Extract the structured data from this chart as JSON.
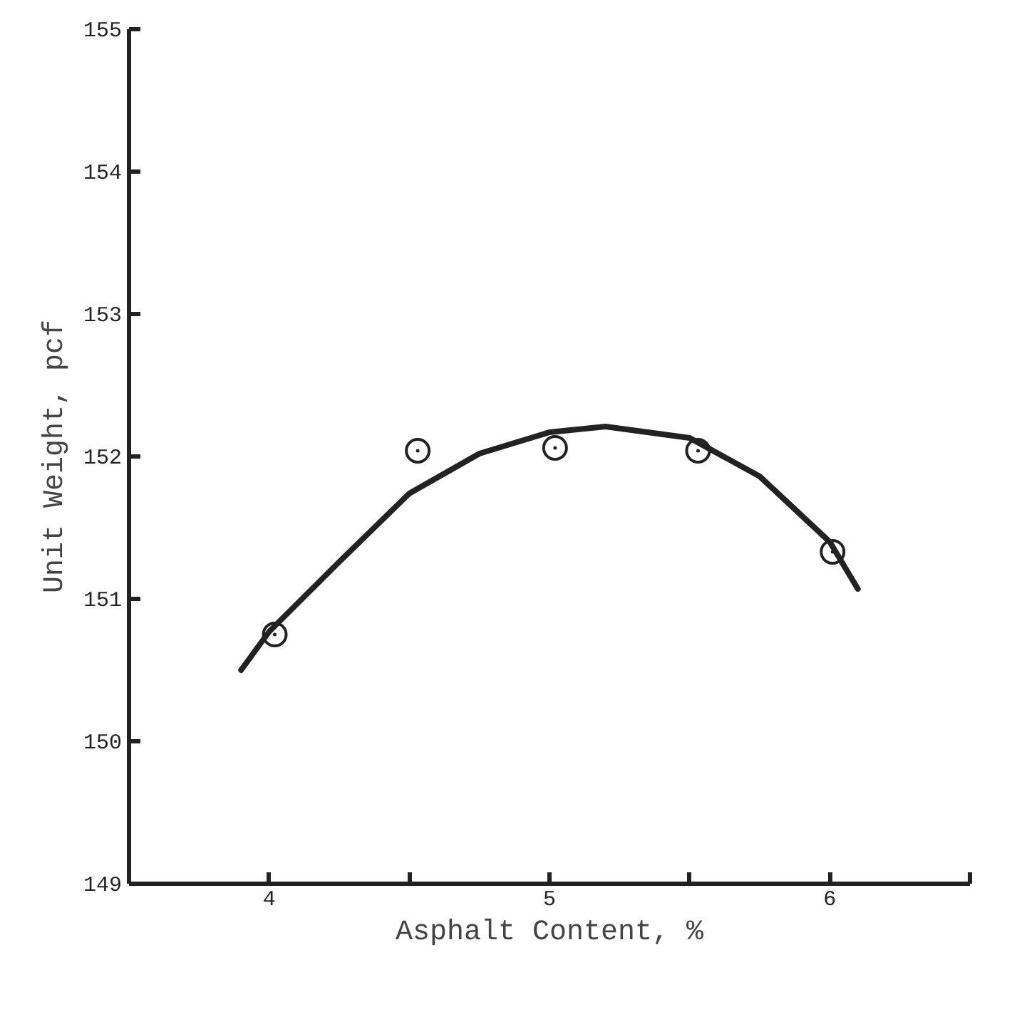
{
  "chart_data": {
    "type": "scatter",
    "xlabel": "Asphalt Content, %",
    "ylabel": "Unit Weight, pcf",
    "xlim": [
      3.5,
      6.5
    ],
    "ylim": [
      149,
      155
    ],
    "xticks": [
      4,
      {
        "value": 4.5,
        "label": null
      },
      5,
      {
        "value": 5.5,
        "label": null
      },
      6,
      {
        "value": 6.5,
        "label": null
      }
    ],
    "yticks": [
      149,
      150,
      151,
      152,
      153,
      154,
      155
    ],
    "series": [
      {
        "marker": "circle",
        "color": "#222222",
        "x": [
          4.02,
          4.53,
          5.02,
          5.53,
          6.01
        ],
        "values": [
          150.75,
          152.04,
          152.06,
          152.04,
          151.33
        ]
      },
      {
        "type": "line",
        "marker": "none",
        "line_style": "solid",
        "color": "#222222",
        "x": [
          3.9,
          4.0,
          4.25,
          4.5,
          4.75,
          5.0,
          5.2,
          5.5,
          5.75,
          6.0,
          6.1
        ],
        "values": [
          150.5,
          150.77,
          151.26,
          151.74,
          152.02,
          152.17,
          152.21,
          152.13,
          151.86,
          151.4,
          151.07
        ]
      }
    ]
  }
}
